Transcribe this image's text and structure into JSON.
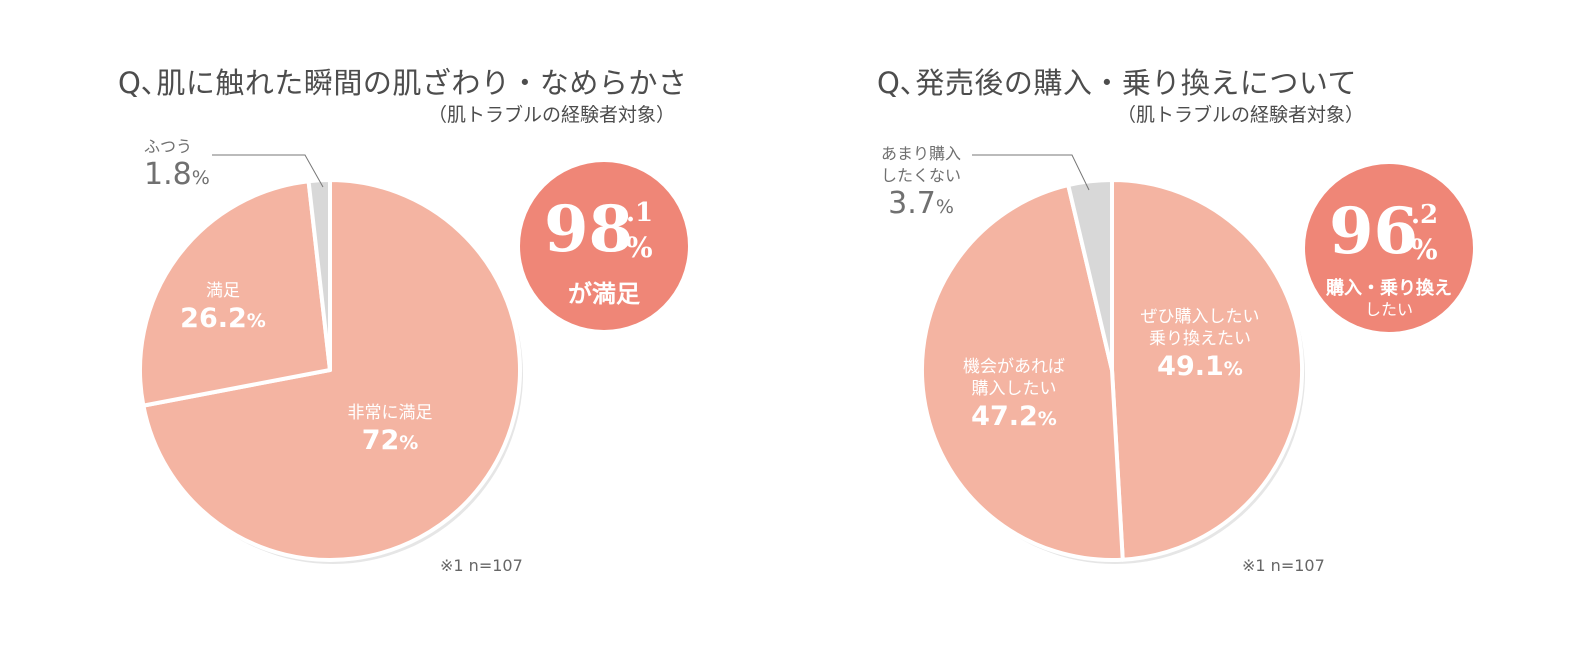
{
  "chart_data": [
    {
      "type": "pie",
      "title": "Q､肌に触れた瞬間の肌ざわり・なめらかさ",
      "subtitle": "（肌トラブルの経験者対象）",
      "note": "※1  n=107",
      "slices": [
        {
          "label": "非常に満足",
          "value": 72,
          "display": "72",
          "color": "#f4b4a2"
        },
        {
          "label": "満足",
          "value": 26.2,
          "display": "26.2",
          "color": "#f4b4a2"
        },
        {
          "label": "ふつう",
          "value": 1.8,
          "display": "1.8",
          "color": "#d8d8d8"
        }
      ],
      "unit": "%",
      "badge": {
        "main": "98",
        "decimal": ".1",
        "unit": "%",
        "caption_lines": [
          "が満足"
        ]
      }
    },
    {
      "type": "pie",
      "title": "Q､発売後の購入・乗り換えについて",
      "subtitle": "（肌トラブルの経験者対象）",
      "note": "※1  n=107",
      "slices": [
        {
          "label_lines": [
            "ぜひ購入したい",
            "乗り換えたい"
          ],
          "value": 49.1,
          "display": "49.1",
          "color": "#f4b4a2"
        },
        {
          "label_lines": [
            "機会があれば",
            "購入したい"
          ],
          "value": 47.2,
          "display": "47.2",
          "color": "#f4b4a2"
        },
        {
          "label_lines": [
            "あまり購入",
            "したくない"
          ],
          "value": 3.7,
          "display": "3.7",
          "color": "#d8d8d8"
        }
      ],
      "unit": "%",
      "badge": {
        "main": "96",
        "decimal": ".2",
        "unit": "%",
        "caption_lines": [
          "購入・乗り換え",
          "したい"
        ]
      }
    }
  ]
}
